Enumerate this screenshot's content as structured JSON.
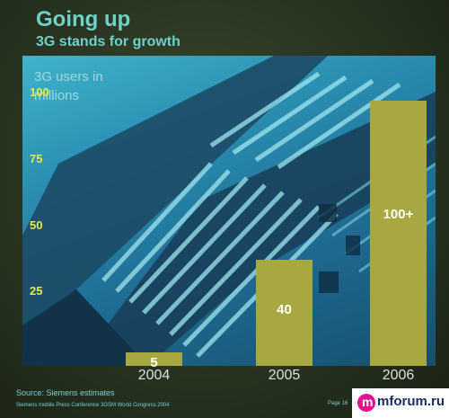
{
  "slide": {
    "title": "Going up",
    "subtitle": "3G stands for growth",
    "source": "Source: Siemens estimates",
    "footer": "Siemens mobile Press Conference 3GSM World Congress 2004",
    "page": "Page 16"
  },
  "logo": {
    "text": "mforum.ru",
    "mark": "m"
  },
  "colors": {
    "bar": "#a8a840",
    "tick": "#f0e840",
    "accent": "#6fd0c8"
  },
  "chart_data": {
    "type": "bar",
    "ylabel": "3G users in millions",
    "categories": [
      "2004",
      "2005",
      "2006"
    ],
    "values": [
      5,
      40,
      100
    ],
    "data_labels": [
      "5",
      "40",
      "100+"
    ],
    "yticks": [
      25,
      50,
      75,
      100
    ],
    "ylim": [
      0,
      120
    ],
    "grid": false,
    "legend": "none"
  }
}
